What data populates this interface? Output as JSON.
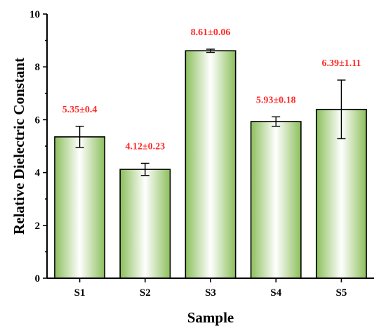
{
  "chart_data": {
    "type": "bar",
    "categories": [
      "S1",
      "S2",
      "S3",
      "S4",
      "S5"
    ],
    "values": [
      5.35,
      4.12,
      8.61,
      5.93,
      6.39
    ],
    "errors": [
      0.4,
      0.23,
      0.06,
      0.18,
      1.11
    ],
    "data_labels": [
      "5.35±0.4",
      "4.12±0.23",
      "8.61±0.06",
      "5.93±0.18",
      "6.39±1.11"
    ],
    "xlabel": "Sample",
    "ylabel": "Relative Dielectric Constant",
    "ylim": [
      0,
      10
    ],
    "yticks": [
      0,
      2,
      4,
      6,
      8,
      10
    ],
    "grid": false,
    "colors": {
      "bar_edge": "#8cbf5c",
      "bar_center": "#ffffff",
      "label": "#ff2a2a",
      "axis": "#000000"
    }
  }
}
